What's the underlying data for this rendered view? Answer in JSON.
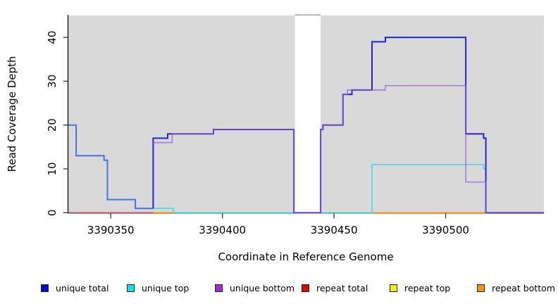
{
  "chart_data": {
    "type": "line",
    "title": "",
    "xlabel": "Coordinate in Reference Genome",
    "ylabel": "Read Coverage Depth",
    "xlim": [
      3390331,
      3390544
    ],
    "ylim": [
      0,
      45
    ],
    "x_ticks": [
      3390350,
      3390400,
      3390450,
      3390500
    ],
    "y_ticks": [
      0,
      10,
      20,
      30,
      40
    ],
    "plot_bg": "#d9d9d9",
    "grid": "off",
    "gap": {
      "x0": 3390432.5,
      "x1": 3390444,
      "fill": "#ffffff",
      "top_border": "#9a9a9a"
    },
    "baseline_segments": [
      {
        "name": "baseline-pink",
        "color": "#cd5e7d",
        "x0": 3390331,
        "x1": 3390369,
        "y": 0
      },
      {
        "name": "baseline-orange-1",
        "color": "#ff9a20",
        "x0": 3390369,
        "x1": 3390378,
        "y": 0
      },
      {
        "name": "baseline-green-1",
        "color": "#8cc98c",
        "x0": 3390378,
        "x1": 3390432.5,
        "y": 0
      },
      {
        "name": "baseline-green-2",
        "color": "#8cc98c",
        "x0": 3390444,
        "x1": 3390467,
        "y": 0
      },
      {
        "name": "baseline-orange-2",
        "color": "#ff9a20",
        "x0": 3390467,
        "x1": 3390519,
        "y": 0
      }
    ],
    "series": [
      {
        "name": "unique top",
        "color": "#45d9e6",
        "width": 1.6,
        "below_gap": true,
        "points": [
          [
            3390369,
            1
          ],
          [
            3390378,
            1
          ],
          [
            3390378,
            0
          ],
          [
            3390467,
            0
          ],
          [
            3390467,
            11
          ],
          [
            3390517,
            11
          ],
          [
            3390517,
            10
          ],
          [
            3390518,
            10
          ],
          [
            3390518,
            0
          ],
          [
            3390519,
            0
          ]
        ]
      },
      {
        "name": "unique total",
        "width": 2,
        "segments": [
          {
            "color": "#4673e6",
            "points": [
              [
                3390331,
                20
              ],
              [
                3390334.5,
                20
              ],
              [
                3390334.5,
                13
              ],
              [
                3390347,
                13
              ],
              [
                3390347,
                12
              ],
              [
                3390348.5,
                12
              ],
              [
                3390348.5,
                3
              ],
              [
                3390361,
                3
              ],
              [
                3390361,
                1
              ],
              [
                3390369,
                1
              ]
            ]
          },
          {
            "color": "#2323d8",
            "points": [
              [
                3390369,
                1
              ],
              [
                3390369,
                17
              ],
              [
                3390375.5,
                17
              ],
              [
                3390375.5,
                18
              ],
              [
                3390396,
                18
              ],
              [
                3390396,
                19
              ],
              [
                3390432,
                19
              ],
              [
                3390432,
                0
              ],
              [
                3390444,
                0
              ],
              [
                3390444,
                19
              ],
              [
                3390445,
                19
              ],
              [
                3390445,
                20
              ],
              [
                3390454,
                20
              ],
              [
                3390454,
                27
              ],
              [
                3390458,
                27
              ],
              [
                3390458,
                28
              ],
              [
                3390467,
                28
              ],
              [
                3390467,
                39
              ],
              [
                3390473,
                39
              ],
              [
                3390473,
                40
              ],
              [
                3390509,
                40
              ],
              [
                3390509,
                18
              ],
              [
                3390517,
                18
              ],
              [
                3390517,
                17
              ],
              [
                3390518,
                17
              ],
              [
                3390518,
                0
              ],
              [
                3390544,
                0
              ]
            ]
          }
        ]
      },
      {
        "name": "unique bottom",
        "color": "#8f5ed8",
        "opacity": 0.7,
        "width": 1.7,
        "points": [
          [
            3390369,
            16
          ],
          [
            3390377.5,
            16
          ],
          [
            3390377.5,
            18
          ],
          [
            3390396,
            18
          ],
          [
            3390396,
            19
          ],
          [
            3390432,
            19
          ],
          [
            3390432,
            0
          ],
          [
            3390444,
            0
          ],
          [
            3390444,
            19
          ],
          [
            3390445,
            19
          ],
          [
            3390445,
            20
          ],
          [
            3390454,
            20
          ],
          [
            3390454,
            27
          ],
          [
            3390456,
            27
          ],
          [
            3390456,
            28
          ],
          [
            3390473,
            28
          ],
          [
            3390473,
            29
          ],
          [
            3390509,
            29
          ],
          [
            3390509,
            7
          ],
          [
            3390518,
            7
          ],
          [
            3390518,
            0
          ],
          [
            3390544,
            0
          ]
        ]
      }
    ]
  },
  "legend": {
    "items": [
      {
        "label": "unique total",
        "color": "#0000f0"
      },
      {
        "label": "unique top",
        "color": "#00e9ef"
      },
      {
        "label": "unique bottom",
        "color": "#9b30d9"
      },
      {
        "label": "repeat total",
        "color": "#e80000"
      },
      {
        "label": "repeat top",
        "color": "#f2f200"
      },
      {
        "label": "repeat bottom",
        "color": "#f59300"
      }
    ]
  }
}
